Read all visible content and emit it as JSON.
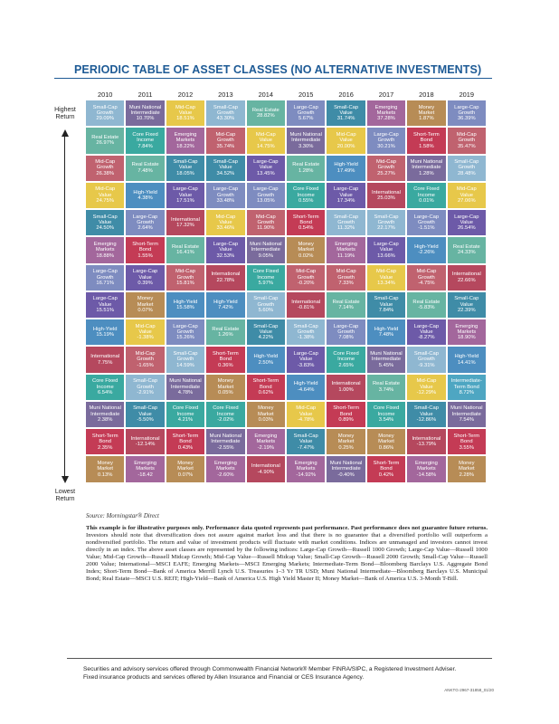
{
  "title": "PERIODIC TABLE OF ASSET CLASSES (NO ALTERNATIVE INVESTMENTS)",
  "side_labels": {
    "top": "Highest\nReturn",
    "bottom": "Lowest\nReturn"
  },
  "colors": {
    "Small-Cap\nGrowth": "#8fb7d1",
    "Muni National\nIntermediate": "#7a6b9c",
    "Mid-Cap\nValue": "#e7c84a",
    "Small-Cap\nValue": "#3f8ca7",
    "Real Estate": "#67b4a2",
    "Large-Cap\nGrowth": "#7e8cc0",
    "Emerging\nMarkets": "#a3679c",
    "Money\nMarket": "#b78c56",
    "Core Fixed\nIncome": "#3aa9a0",
    "Mid-Cap\nGrowth": "#c0626f",
    "Short-Term\nBond": "#c43b55",
    "High-Yield": "#4d8ec0",
    "Large-Cap\nValue": "#6d5aa8",
    "International": "#b5485e",
    "Intermediate-\nTerm Bond": "#4ea6c2"
  },
  "years": [
    "2010",
    "2011",
    "2012",
    "2013",
    "2014",
    "2015",
    "2016",
    "2017",
    "2018",
    "2019"
  ],
  "columns": [
    [
      {
        "name": "Small-Cap\nGrowth",
        "value": "29.09%"
      },
      {
        "name": "Real Estate",
        "value": "26.97%"
      },
      {
        "name": "Mid-Cap\nGrowth",
        "value": "26.38%"
      },
      {
        "name": "Mid-Cap\nValue",
        "value": "24.75%"
      },
      {
        "name": "Small-Cap\nValue",
        "value": "24.50%"
      },
      {
        "name": "Emerging\nMarkets",
        "value": "18.88%"
      },
      {
        "name": "Large-Cap\nGrowth",
        "value": "16.71%"
      },
      {
        "name": "Large-Cap\nValue",
        "value": "15.51%"
      },
      {
        "name": "High-Yield",
        "value": "15.19%"
      },
      {
        "name": "International",
        "value": "7.75%"
      },
      {
        "name": "Core Fixed\nIncome",
        "value": "6.54%"
      },
      {
        "name": "Muni National\nIntermediate",
        "value": "2.38%"
      },
      {
        "name": "Short-Term\nBond",
        "value": "2.35%"
      },
      {
        "name": "Money\nMarket",
        "value": "0.13%"
      }
    ],
    [
      {
        "name": "Muni National\nIntermediate",
        "value": "10.70%"
      },
      {
        "name": "Core Fixed\nIncome",
        "value": "7.84%"
      },
      {
        "name": "Real Estate",
        "value": "7.48%"
      },
      {
        "name": "High-Yield",
        "value": "4.38%"
      },
      {
        "name": "Large-Cap\nGrowth",
        "value": "2.64%"
      },
      {
        "name": "Short-Term\nBond",
        "value": "1.55%"
      },
      {
        "name": "Large-Cap\nValue",
        "value": "0.39%"
      },
      {
        "name": "Money\nMarket",
        "value": "0.07%"
      },
      {
        "name": "Mid-Cap\nValue",
        "value": "-1.38%"
      },
      {
        "name": "Mid-Cap\nGrowth",
        "value": "-1.65%"
      },
      {
        "name": "Small-Cap\nGrowth",
        "value": "-2.91%"
      },
      {
        "name": "Small-Cap\nValue",
        "value": "-5.50%"
      },
      {
        "name": "International",
        "value": "-12.14%"
      },
      {
        "name": "Emerging\nMarkets",
        "value": "-18.42"
      }
    ],
    [
      {
        "name": "Mid-Cap\nValue",
        "value": "18.51%"
      },
      {
        "name": "Emerging\nMarkets",
        "value": "18.22%"
      },
      {
        "name": "Small-Cap\nValue",
        "value": "18.05%"
      },
      {
        "name": "Large-Cap\nValue",
        "value": "17.51%"
      },
      {
        "name": "International",
        "value": "17.32%"
      },
      {
        "name": "Real Estate",
        "value": "16.41%"
      },
      {
        "name": "Mid-Cap\nGrowth",
        "value": "15.81%"
      },
      {
        "name": "High-Yield",
        "value": "15.58%"
      },
      {
        "name": "Large-Cap\nGrowth",
        "value": "15.26%"
      },
      {
        "name": "Small-Cap\nGrowth",
        "value": "14.59%"
      },
      {
        "name": "Muni National\nIntermediate",
        "value": "4.78%"
      },
      {
        "name": "Core Fixed\nIncome",
        "value": "4.21%"
      },
      {
        "name": "Short-Term\nBond",
        "value": "0.43%"
      },
      {
        "name": "Money\nMarket",
        "value": "0.07%"
      }
    ],
    [
      {
        "name": "Small-Cap\nGrowth",
        "value": "43.30%"
      },
      {
        "name": "Mid-Cap\nGrowth",
        "value": "35.74%"
      },
      {
        "name": "Small-Cap\nValue",
        "value": "34.52%"
      },
      {
        "name": "Large-Cap\nGrowth",
        "value": "33.48%"
      },
      {
        "name": "Mid-Cap\nValue",
        "value": "33.46%"
      },
      {
        "name": "Large-Cap\nValue",
        "value": "32.53%"
      },
      {
        "name": "International",
        "value": "22.78%"
      },
      {
        "name": "High-Yield",
        "value": "7.42%"
      },
      {
        "name": "Real Estate",
        "value": "1.26%"
      },
      {
        "name": "Short-Term\nBond",
        "value": "0.36%"
      },
      {
        "name": "Money\nMarket",
        "value": "0.05%"
      },
      {
        "name": "Core Fixed\nIncome",
        "value": "-2.02%"
      },
      {
        "name": "Muni National\nIntermediate",
        "value": "-2.55%"
      },
      {
        "name": "Emerging\nMarkets",
        "value": "-2.60%"
      }
    ],
    [
      {
        "name": "Real Estate",
        "value": "28.82%"
      },
      {
        "name": "Mid-Cap\nValue",
        "value": "14.75%"
      },
      {
        "name": "Large-Cap\nValue",
        "value": "13.45%"
      },
      {
        "name": "Large-Cap\nGrowth",
        "value": "13.05%"
      },
      {
        "name": "Mid-Cap\nGrowth",
        "value": "11.90%"
      },
      {
        "name": "Muni National\nIntermediate",
        "value": "9.05%"
      },
      {
        "name": "Core Fixed\nIncome",
        "value": "5.97%"
      },
      {
        "name": "Small-Cap\nGrowth",
        "value": "5.60%"
      },
      {
        "name": "Small-Cap\nValue",
        "value": "4.22%"
      },
      {
        "name": "High-Yield",
        "value": "2.50%"
      },
      {
        "name": "Short-Term\nBond",
        "value": "0.62%"
      },
      {
        "name": "Money\nMarket",
        "value": "0.03%"
      },
      {
        "name": "Emerging\nMarkets",
        "value": "-2.19%"
      },
      {
        "name": "International",
        "value": "-4.90%"
      }
    ],
    [
      {
        "name": "Large-Cap\nGrowth",
        "value": "5.67%"
      },
      {
        "name": "Muni National\nIntermediate",
        "value": "3.30%"
      },
      {
        "name": "Real Estate",
        "value": "1.28%"
      },
      {
        "name": "Core Fixed\nIncome",
        "value": "0.55%"
      },
      {
        "name": "Short-Term\nBond",
        "value": "0.54%"
      },
      {
        "name": "Money\nMarket",
        "value": "0.02%"
      },
      {
        "name": "Mid-Cap\nGrowth",
        "value": "-0.20%"
      },
      {
        "name": "International",
        "value": "-0.81%"
      },
      {
        "name": "Small-Cap\nGrowth",
        "value": "-1.38%"
      },
      {
        "name": "Large-Cap\nValue",
        "value": "-3.83%"
      },
      {
        "name": "High-Yield",
        "value": "-4.64%"
      },
      {
        "name": "Mid-Cap\nValue",
        "value": "-4.78%"
      },
      {
        "name": "Small-Cap\nValue",
        "value": "-7.47%"
      },
      {
        "name": "Emerging\nMarkets",
        "value": "-14.92%"
      }
    ],
    [
      {
        "name": "Small-Cap\nValue",
        "value": "31.74%"
      },
      {
        "name": "Mid-Cap\nValue",
        "value": "20.00%"
      },
      {
        "name": "High-Yield",
        "value": "17.49%"
      },
      {
        "name": "Large-Cap\nValue",
        "value": "17.34%"
      },
      {
        "name": "Small-Cap\nGrowth",
        "value": "11.32%"
      },
      {
        "name": "Emerging\nMarkets",
        "value": "11.19%"
      },
      {
        "name": "Mid-Cap\nGrowth",
        "value": "7.33%"
      },
      {
        "name": "Real Estate",
        "value": "7.14%"
      },
      {
        "name": "Large-Cap\nGrowth",
        "value": "7.08%"
      },
      {
        "name": "Core Fixed\nIncome",
        "value": "2.65%"
      },
      {
        "name": "International",
        "value": "1.00%"
      },
      {
        "name": "Short-Term\nBond",
        "value": "0.89%"
      },
      {
        "name": "Money\nMarket",
        "value": "0.25%"
      },
      {
        "name": "Muni National\nIntermediate",
        "value": "-0.40%"
      }
    ],
    [
      {
        "name": "Emerging\nMarkets",
        "value": "37.28%"
      },
      {
        "name": "Large-Cap\nGrowth",
        "value": "30.21%"
      },
      {
        "name": "Mid-Cap\nGrowth",
        "value": "25.27%"
      },
      {
        "name": "International",
        "value": "25.03%"
      },
      {
        "name": "Small-Cap\nGrowth",
        "value": "22.17%"
      },
      {
        "name": "Large-Cap\nValue",
        "value": "13.66%"
      },
      {
        "name": "Mid-Cap\nValue",
        "value": "13.34%"
      },
      {
        "name": "Small-Cap\nValue",
        "value": "7.84%"
      },
      {
        "name": "High-Yield",
        "value": "7.48%"
      },
      {
        "name": "Muni National\nIntermediate",
        "value": "5.45%"
      },
      {
        "name": "Real Estate",
        "value": "3.74%"
      },
      {
        "name": "Core Fixed\nIncome",
        "value": "3.54%"
      },
      {
        "name": "Money\nMarket",
        "value": "0.86%"
      },
      {
        "name": "Short-Term\nBond",
        "value": "0.42%"
      }
    ],
    [
      {
        "name": "Money\nMarket",
        "value": "1.87%"
      },
      {
        "name": "Short-Term\nBond",
        "value": "1.58%"
      },
      {
        "name": "Muni National\nIntermediate",
        "value": "1.28%"
      },
      {
        "name": "Core Fixed\nIncome",
        "value": "0.01%"
      },
      {
        "name": "Large-Cap\nGrowth",
        "value": "-1.51%"
      },
      {
        "name": "High-Yield",
        "value": "-2.26%"
      },
      {
        "name": "Mid-Cap\nGrowth",
        "value": "-4.75%"
      },
      {
        "name": "Real Estate",
        "value": "-5.83%"
      },
      {
        "name": "Large-Cap\nValue",
        "value": "-8.27%"
      },
      {
        "name": "Small-Cap\nGrowth",
        "value": "-9.31%"
      },
      {
        "name": "Mid-Cap\nValue",
        "value": "-12.29%"
      },
      {
        "name": "Small-Cap\nValue",
        "value": "-12.86%"
      },
      {
        "name": "International",
        "value": "-13.79%"
      },
      {
        "name": "Emerging\nMarkets",
        "value": "-14.58%"
      }
    ],
    [
      {
        "name": "Large-Cap\nGrowth",
        "value": "36.39%"
      },
      {
        "name": "Mid-Cap\nGrowth",
        "value": "35.47%"
      },
      {
        "name": "Small-Cap\nGrowth",
        "value": "28.48%"
      },
      {
        "name": "Mid-Cap\nValue",
        "value": "27.06%"
      },
      {
        "name": "Large-Cap\nValue",
        "value": "26.54%"
      },
      {
        "name": "Real Estate",
        "value": "24.33%"
      },
      {
        "name": "International",
        "value": "22.66%"
      },
      {
        "name": "Small-Cap\nValue",
        "value": "22.39%"
      },
      {
        "name": "Emerging\nMarkets",
        "value": "18.90%"
      },
      {
        "name": "High-Yield",
        "value": "14.41%"
      },
      {
        "name": "Intermediate-\nTerm Bond",
        "value": "8.72%"
      },
      {
        "name": "Muni National\nIntermediate",
        "value": "7.54%"
      },
      {
        "name": "Short-Term\nBond",
        "value": "3.55%"
      },
      {
        "name": "Money\nMarket",
        "value": "2.28%"
      }
    ]
  ],
  "source": "Source: Morningstar® Direct",
  "disclaimer_bold": "This example is for illustrative purposes only. Performance data quoted represents past performance. Past performance does not guarantee future returns.",
  "disclaimer_rest": " Investors should note that diversification does not assure against market loss and that there is no guarantee that a diversified portfolio will outperform a nondiversified portfolio. The return and value of investment products will fluctuate with market conditions. Indices are unmanaged and investors cannot invest directly in an index. The above asset classes are represented by the following indices: Large-Cap Growth—Russell 1000 Growth; Large-Cap Value—Russell 1000 Value; Mid-Cap Growth—Russell Midcap Growth; Mid-Cap Value—Russell Midcap Value; Small-Cap Growth—Russell 2000 Growth; Small-Cap Value—Russell 2000 Value; International—MSCI EAFE; Emerging Markets—MSCI Emerging Markets; Intermediate-Term Bond—Bloomberg Barclays U.S. Aggregate Bond Index; Short-Term Bond—Bank of America Merrill Lynch U.S. Treasuries 1–3 Yr TR USD; Muni National Intermediate—Bloomberg Barclays U.S. Municipal Bond; Real Estate—MSCI U.S. REIT; High-Yield—Bank of America U.S. High Yield Master II; Money Market—Bank of America U.S. 3-Month T-Bill.",
  "footer_line1": "Securities and advisory services offered through Commonwealth Financial Network® Member FINRA/SIPC, a Registered Investment Adviser.",
  "footer_line2": "Fixed insurance products and services offered by Allen Insurance and Financial or CES Insurance Agency.",
  "doc_code": "ANKTG-2967-31858_01/20"
}
